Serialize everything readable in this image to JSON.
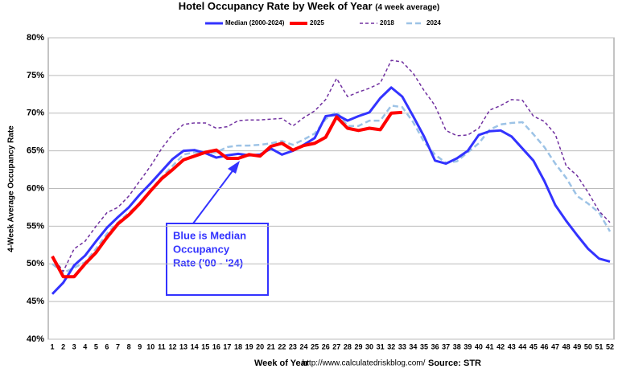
{
  "chart_data": {
    "type": "line",
    "title": "Hotel Occupancy Rate by  Week of Year",
    "subtitle": "(4 week average)",
    "x_label": "Week of Year",
    "y_label": "4-Week Average Occupancy Rate",
    "url": "http://www.calculatedriskblog.com/",
    "source": "Source: STR",
    "annotation": [
      "Blue is Median",
      "Occupancy",
      "Rate ('00 - '24)"
    ],
    "categories": [
      "1",
      "2",
      "3",
      "4",
      "5",
      "6",
      "7",
      "8",
      "9",
      "10",
      "11",
      "12",
      "13",
      "14",
      "15",
      "16",
      "17",
      "18",
      "19",
      "20",
      "21",
      "22",
      "23",
      "24",
      "25",
      "26",
      "27",
      "28",
      "29",
      "30",
      "31",
      "32",
      "33",
      "34",
      "35",
      "36",
      "37",
      "38",
      "39",
      "40",
      "41",
      "42",
      "43",
      "44",
      "45",
      "46",
      "47",
      "48",
      "49",
      "50",
      "51",
      "52"
    ],
    "ylim": [
      40,
      80
    ],
    "yticks": [
      {
        "value": 40,
        "label": "40%"
      },
      {
        "value": 45,
        "label": "45%"
      },
      {
        "value": 50,
        "label": "50%"
      },
      {
        "value": 55,
        "label": "55%"
      },
      {
        "value": 60,
        "label": "60%"
      },
      {
        "value": 65,
        "label": "65%"
      },
      {
        "value": 70,
        "label": "70%"
      },
      {
        "value": 75,
        "label": "75%"
      },
      {
        "value": 80,
        "label": "80%"
      }
    ],
    "grid": true,
    "series": [
      {
        "name": "Median (2000-2024)",
        "color": "#3333ff",
        "line_style": "solid",
        "values": [
          46.0,
          47.5,
          49.8,
          51.1,
          53,
          54.8,
          56.2,
          57.5,
          59.2,
          60.7,
          62.3,
          63.9,
          65,
          65.1,
          64.7,
          64.1,
          64.4,
          64.6,
          64.4,
          64.5,
          65.3,
          64.5,
          65,
          65.8,
          66.7,
          69.6,
          69.8,
          69,
          69.6,
          70.1,
          72,
          73.4,
          72.2,
          69.6,
          66.9,
          63.7,
          63.3,
          64,
          65,
          67.1,
          67.6,
          67.7,
          66.9,
          65.3,
          63.7,
          61,
          57.8,
          55.7,
          53.8,
          52,
          50.7,
          50.3
        ]
      },
      {
        "name": "2025",
        "color": "#ff0000",
        "line_style": "thick",
        "values": [
          51,
          48.3,
          48.3,
          50,
          51.5,
          53.5,
          55.3,
          56.5,
          58,
          59.7,
          61.3,
          62.5,
          63.8,
          64.3,
          64.8,
          65.1,
          64,
          64,
          64.5,
          64.3,
          65.6,
          66,
          65.1,
          65.7,
          66,
          66.8,
          69.5,
          68,
          67.7,
          68,
          67.8,
          70,
          70.1,
          null,
          null,
          null,
          null,
          null,
          null,
          null,
          null,
          null,
          null,
          null,
          null,
          null,
          null,
          null,
          null,
          null,
          null,
          null
        ]
      },
      {
        "name": "2018",
        "color": "#7030a0",
        "line_style": "dashed",
        "values": [
          51,
          49,
          52,
          53,
          55,
          56.8,
          57.5,
          59,
          61,
          63,
          65.3,
          67.2,
          68.5,
          68.7,
          68.7,
          68,
          68.2,
          69,
          69.1,
          69.1,
          69.2,
          69.3,
          68.3,
          69.4,
          70.3,
          71.8,
          74.6,
          72.2,
          72.8,
          73.3,
          74,
          77,
          76.8,
          75.3,
          73,
          71,
          67.7,
          67,
          67.1,
          68,
          70.4,
          71,
          71.8,
          71.7,
          69.6,
          68.9,
          67.2,
          63,
          61.7,
          59.5,
          57,
          55.5
        ]
      },
      {
        "name": "2024",
        "color": "#9dc3e6",
        "line_style": "dashed-thick",
        "values": [
          50,
          48.8,
          49.5,
          50.2,
          52,
          54,
          55.5,
          56.8,
          58,
          59.8,
          61.5,
          63,
          64.5,
          64.8,
          64.7,
          64.8,
          65.5,
          65.7,
          65.7,
          65.8,
          66,
          66.3,
          65.8,
          66.5,
          67.3,
          69.2,
          70.2,
          68.3,
          68.3,
          69,
          69,
          71,
          70.8,
          68.8,
          66.2,
          64.5,
          63.4,
          63.6,
          64.8,
          66,
          67.8,
          68.5,
          68.7,
          68.8,
          67.2,
          65.5,
          63.3,
          61.4,
          59,
          58,
          56.8,
          54.3
        ]
      }
    ]
  }
}
